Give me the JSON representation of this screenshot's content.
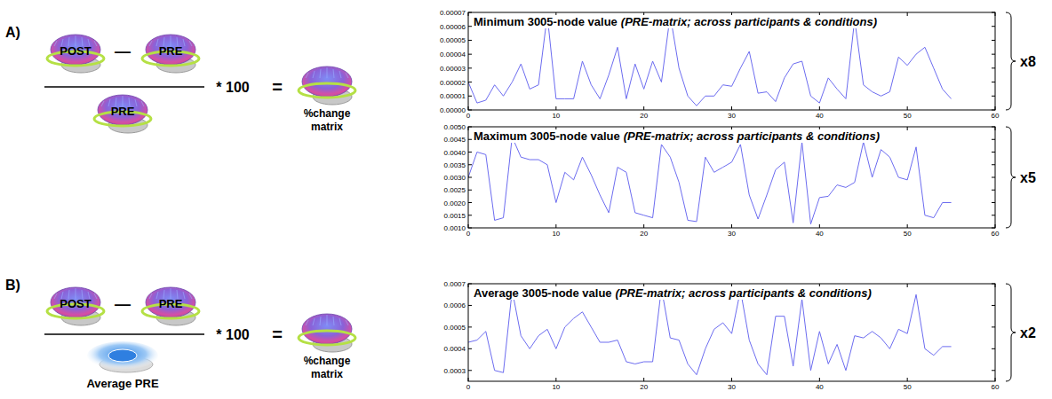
{
  "chart_data": [
    {
      "type": "line",
      "title": "Minimum 3005-node value",
      "subtitle": "(PRE-matrix; across participants & conditions)",
      "color": "#6c6cf0",
      "annotation": "x8",
      "x": [
        0,
        1,
        2,
        3,
        4,
        5,
        6,
        7,
        8,
        9,
        10,
        11,
        12,
        13,
        14,
        15,
        16,
        17,
        18,
        19,
        20,
        21,
        22,
        23,
        24,
        25,
        26,
        27,
        28,
        29,
        30,
        31,
        32,
        33,
        34,
        35,
        36,
        37,
        38,
        39,
        40,
        41,
        42,
        43,
        44,
        45,
        46,
        47,
        48,
        49,
        50,
        51,
        52,
        53,
        54,
        55
      ],
      "values": [
        2e-05,
        5e-06,
        7e-06,
        1.8e-05,
        1e-05,
        2e-05,
        3.3e-05,
        1.5e-05,
        1.8e-05,
        6.8e-05,
        8e-06,
        8e-06,
        8e-06,
        3.5e-05,
        1.8e-05,
        8e-06,
        2.5e-05,
        4.5e-05,
        8e-06,
        3.3e-05,
        1.5e-05,
        3.5e-05,
        2e-05,
        6.8e-05,
        3e-05,
        1e-05,
        3e-06,
        1e-05,
        1e-05,
        1.8e-05,
        1.7e-05,
        3e-05,
        4.2e-05,
        1.2e-05,
        1.3e-05,
        6e-06,
        2.3e-05,
        3.3e-05,
        3.5e-05,
        1e-05,
        5e-06,
        2.3e-05,
        1.5e-05,
        8e-06,
        6.5e-05,
        1.8e-05,
        1.3e-05,
        1e-05,
        1.3e-05,
        3.8e-05,
        3.2e-05,
        4e-05,
        4.5e-05,
        3e-05,
        1.5e-05,
        8e-06
      ],
      "xlim": [
        0,
        60
      ],
      "xticks": [
        0,
        10,
        20,
        30,
        40,
        50,
        60
      ],
      "ylim": [
        0,
        7e-05
      ],
      "yticks": [
        {
          "value": 0,
          "label": "0.00000"
        },
        {
          "value": 1e-05,
          "label": "0.00001"
        },
        {
          "value": 2e-05,
          "label": "0.00002"
        },
        {
          "value": 3e-05,
          "label": "0.00003"
        },
        {
          "value": 4e-05,
          "label": "0.00004"
        },
        {
          "value": 5e-05,
          "label": "0.00005"
        },
        {
          "value": 6e-05,
          "label": "0.00006"
        },
        {
          "value": 7e-05,
          "label": "0.00007"
        }
      ],
      "grid": false
    },
    {
      "type": "line",
      "title": "Maximum 3005-node value",
      "subtitle": "(PRE-matrix; across participants & conditions)",
      "color": "#6c6cf0",
      "annotation": "x5",
      "x": [
        0,
        1,
        2,
        3,
        4,
        5,
        6,
        7,
        8,
        9,
        10,
        11,
        12,
        13,
        14,
        15,
        16,
        17,
        18,
        19,
        20,
        21,
        22,
        23,
        24,
        25,
        26,
        27,
        28,
        29,
        30,
        31,
        32,
        33,
        34,
        35,
        36,
        37,
        38,
        39,
        40,
        41,
        42,
        43,
        44,
        45,
        46,
        47,
        48,
        49,
        50,
        51,
        52,
        53,
        54,
        55
      ],
      "values": [
        0.003,
        0.004,
        0.0039,
        0.0013,
        0.0014,
        0.0046,
        0.0038,
        0.0037,
        0.0037,
        0.0035,
        0.002,
        0.0032,
        0.0029,
        0.0038,
        0.0031,
        0.0023,
        0.0016,
        0.0034,
        0.0032,
        0.0016,
        0.0015,
        0.0014,
        0.0043,
        0.0038,
        0.0028,
        0.0013,
        0.00125,
        0.0038,
        0.0032,
        0.0034,
        0.0036,
        0.0043,
        0.0023,
        0.00135,
        0.0023,
        0.0033,
        0.0036,
        0.0012,
        0.0044,
        0.00115,
        0.0022,
        0.00225,
        0.0027,
        0.0026,
        0.0028,
        0.0044,
        0.003,
        0.0041,
        0.0038,
        0.003,
        0.0029,
        0.0042,
        0.0015,
        0.0014,
        0.002,
        0.002
      ],
      "xlim": [
        0,
        60
      ],
      "xticks": [
        0,
        10,
        20,
        30,
        40,
        50,
        60
      ],
      "ylim": [
        0.001,
        0.005
      ],
      "yticks": [
        {
          "value": 0.001,
          "label": "0.0010"
        },
        {
          "value": 0.0015,
          "label": "0.0015"
        },
        {
          "value": 0.002,
          "label": "0.0020"
        },
        {
          "value": 0.0025,
          "label": "0.0025"
        },
        {
          "value": 0.003,
          "label": "0.0030"
        },
        {
          "value": 0.0035,
          "label": "0.0035"
        },
        {
          "value": 0.004,
          "label": "0.0040"
        },
        {
          "value": 0.0045,
          "label": "0.0045"
        },
        {
          "value": 0.005,
          "label": "0.0050"
        }
      ],
      "grid": false
    },
    {
      "type": "line",
      "title": "Average 3005-node value",
      "subtitle": "(PRE-matrix; across participants & conditions)",
      "color": "#6c6cf0",
      "annotation": "x2",
      "x": [
        0,
        1,
        2,
        3,
        4,
        5,
        6,
        7,
        8,
        9,
        10,
        11,
        12,
        13,
        14,
        15,
        16,
        17,
        18,
        19,
        20,
        21,
        22,
        23,
        24,
        25,
        26,
        27,
        28,
        29,
        30,
        31,
        32,
        33,
        34,
        35,
        36,
        37,
        38,
        39,
        40,
        41,
        42,
        43,
        44,
        45,
        46,
        47,
        48,
        49,
        50,
        51,
        52,
        53,
        54,
        55
      ],
      "values": [
        0.00043,
        0.00044,
        0.00048,
        0.0003,
        0.00029,
        0.00067,
        0.00046,
        0.0004,
        0.00046,
        0.00049,
        0.0004,
        0.0005,
        0.00054,
        0.00057,
        0.0005,
        0.00043,
        0.00043,
        0.00044,
        0.00034,
        0.00033,
        0.00034,
        0.00034,
        0.00068,
        0.00045,
        0.00044,
        0.00033,
        0.00028,
        0.0004,
        0.00049,
        0.00052,
        0.00047,
        0.00067,
        0.00044,
        0.00033,
        0.00028,
        0.00055,
        0.00055,
        0.00032,
        0.00063,
        0.0003,
        0.00048,
        0.00033,
        0.00042,
        0.0003,
        0.00046,
        0.00045,
        0.00048,
        0.00045,
        0.0004,
        0.00049,
        0.00047,
        0.00065,
        0.0004,
        0.00037,
        0.00041,
        0.00041
      ],
      "xlim": [
        0,
        60
      ],
      "xticks": [
        0,
        10,
        20,
        30,
        40,
        50,
        60
      ],
      "ylim": [
        0.00025,
        0.0007
      ],
      "yticks": [
        0.0003,
        0.0004,
        0.0005,
        0.0006,
        0.0007
      ],
      "grid": false
    }
  ],
  "diagram": {
    "panels": [
      {
        "letter": "A)",
        "numerator": [
          "POST",
          "PRE"
        ],
        "operator": "—",
        "denominator": "PRE",
        "multiplier": "* 100",
        "equals": "=",
        "result": "%change matrix"
      },
      {
        "letter": "B)",
        "numerator": [
          "POST",
          "PRE"
        ],
        "operator": "—",
        "denominator": "Average PRE",
        "multiplier": "* 100",
        "equals": "=",
        "result": "%change matrix"
      }
    ]
  }
}
